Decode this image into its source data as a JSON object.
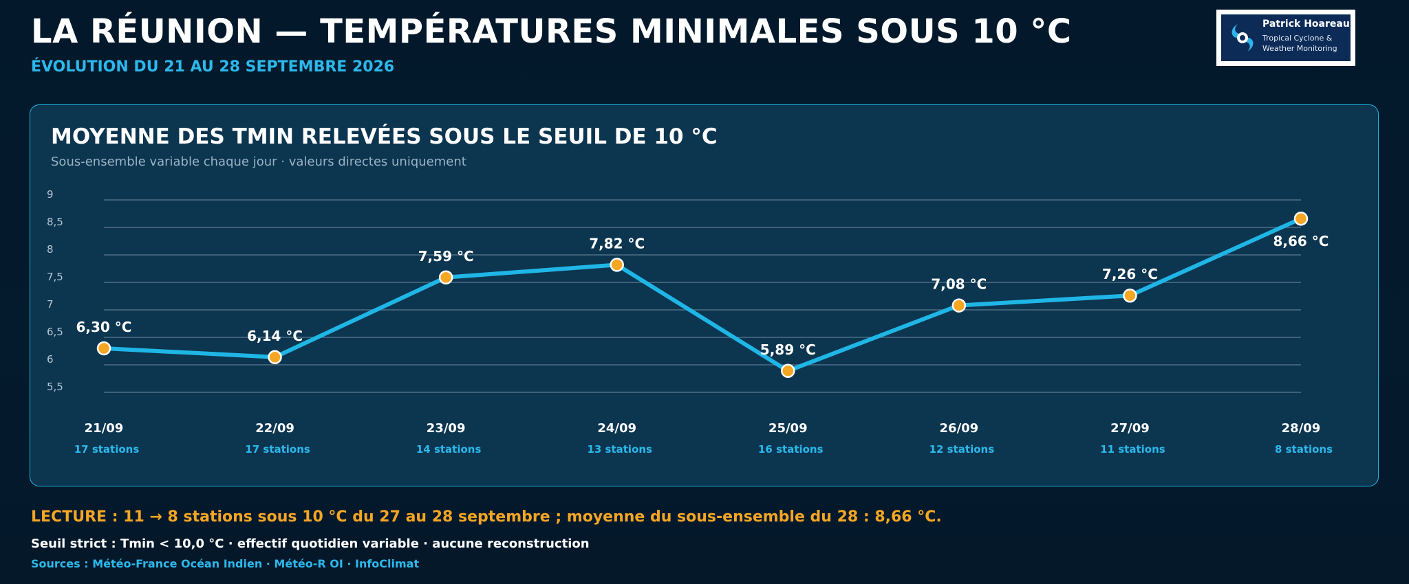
{
  "header": {
    "title": "LA RÉUNION — TEMPÉRATURES MINIMALES SOUS 10 °C",
    "subtitle": "ÉVOLUTION DU 21 AU 28 SEPTEMBRE 2026"
  },
  "logo": {
    "name": "Patrick Hoareau",
    "tagline": "Tropical Cyclone & Weather Monitoring",
    "icon": "cyclone-icon"
  },
  "panel": {
    "title": "MOYENNE DES TMIN RELEVÉES SOUS LE SEUIL DE 10 °C",
    "subtitle": "Sous-ensemble variable chaque jour · valeurs directes uniquement"
  },
  "chart_data": {
    "type": "line",
    "title": "MOYENNE DES TMIN RELEVÉES SOUS LE SEUIL DE 10 °C",
    "xlabel": "",
    "ylabel": "",
    "categories": [
      "21/09",
      "22/09",
      "23/09",
      "24/09",
      "25/09",
      "26/09",
      "27/09",
      "28/09"
    ],
    "values": [
      6.3,
      6.14,
      7.59,
      7.82,
      5.89,
      7.08,
      7.26,
      8.66
    ],
    "value_labels": [
      "6,30 °C",
      "6,14 °C",
      "7,59 °C",
      "7,82 °C",
      "5,89 °C",
      "7,08 °C",
      "7,26 °C",
      "8,66 °C"
    ],
    "stations": [
      "17 stations",
      "17 stations",
      "14 stations",
      "13 stations",
      "16 stations",
      "12 stations",
      "11 stations",
      "8 stations"
    ],
    "yticks": [
      5.5,
      6,
      6.5,
      7,
      7.5,
      8,
      8.5,
      9
    ],
    "ytick_labels": [
      "5,5",
      "6",
      "6,5",
      "7",
      "7,5",
      "8",
      "8,5",
      "9"
    ],
    "ylim": [
      5.5,
      9
    ],
    "grid": true,
    "legend": "none",
    "colors": {
      "line": "#1fb6e6",
      "marker": "#f5a623",
      "marker_outline": "#ffffff",
      "grid": "#4f7084",
      "tick": "#b8c9d4",
      "station": "#2cb8ea"
    }
  },
  "footer": {
    "reading": "LECTURE : 11 → 8 stations sous 10 °C du 27 au 28 septembre ; moyenne du sous-ensemble du 28 : 8,66 °C.",
    "threshold": "Seuil strict : Tmin < 10,0 °C · effectif quotidien variable · aucune reconstruction",
    "sources": "Sources : Météo-France Océan Indien · Météo-R OI · InfoClimat"
  }
}
